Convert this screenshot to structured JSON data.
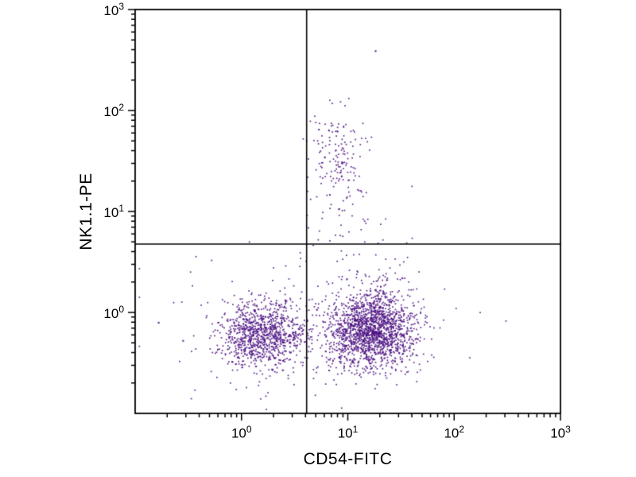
{
  "figure": {
    "background": "#ffffff"
  },
  "chart_data": {
    "type": "scatter",
    "title": "",
    "xlabel": "CD54-FITC",
    "ylabel": "NK1.1-PE",
    "x_scale": "log",
    "y_scale": "log",
    "x_range_log10": [
      -1,
      3
    ],
    "y_range_log10": [
      -1,
      3
    ],
    "x_ticks": [
      {
        "base": "10",
        "exp": "0",
        "log10": 0
      },
      {
        "base": "10",
        "exp": "1",
        "log10": 1
      },
      {
        "base": "10",
        "exp": "2",
        "log10": 2
      },
      {
        "base": "10",
        "exp": "3",
        "log10": 3
      }
    ],
    "y_ticks": [
      {
        "base": "10",
        "exp": "0",
        "log10": 0
      },
      {
        "base": "10",
        "exp": "1",
        "log10": 1
      },
      {
        "base": "10",
        "exp": "2",
        "log10": 2
      },
      {
        "base": "10",
        "exp": "3",
        "log10": 3
      }
    ],
    "dot_color": "#4b0f82",
    "dot_size_px": 1.7,
    "line_color": "#000000",
    "quadrant_gate": {
      "x_value": 4.1,
      "y_value": 4.75
    },
    "random_seed": 42,
    "populations": [
      {
        "name": "CD54-neg NK1.1-neg lower-left",
        "cx_log10": 0.18,
        "cy_log10": -0.22,
        "sx_log10": 0.2,
        "sy_log10": 0.16,
        "count": 900
      },
      {
        "name": "CD54-pos NK1.1-neg lower-right",
        "cx_log10": 1.22,
        "cy_log10": -0.18,
        "sx_log10": 0.2,
        "sy_log10": 0.18,
        "count": 1600
      },
      {
        "name": "baseline-spread",
        "cx_log10": 0.7,
        "cy_log10": -0.22,
        "sx_log10": 0.55,
        "sy_log10": 0.28,
        "count": 250
      },
      {
        "name": "CD54-pos upward-trail",
        "cx_log10": 1.33,
        "cy_log10": 0.25,
        "sx_log10": 0.18,
        "sy_log10": 0.3,
        "count": 90
      },
      {
        "name": "NK1.1-pos upper-middle",
        "cx_log10": 0.88,
        "cy_log10": 1.55,
        "sx_log10": 0.14,
        "sy_log10": 0.22,
        "count": 140
      },
      {
        "name": "NK1.1-pos lower-tail",
        "cx_log10": 0.95,
        "cy_log10": 1.05,
        "sx_log10": 0.18,
        "sy_log10": 0.28,
        "count": 45
      },
      {
        "name": "sparse-background",
        "cx_log10": 0.4,
        "cy_log10": 0.05,
        "sx_log10": 0.75,
        "sy_log10": 0.45,
        "count": 45
      }
    ],
    "outlier_points_log10": [
      {
        "x": 1.26,
        "y": 2.59
      },
      {
        "x": -0.78,
        "y": -0.1
      },
      {
        "x": -0.55,
        "y": -0.28
      }
    ]
  }
}
